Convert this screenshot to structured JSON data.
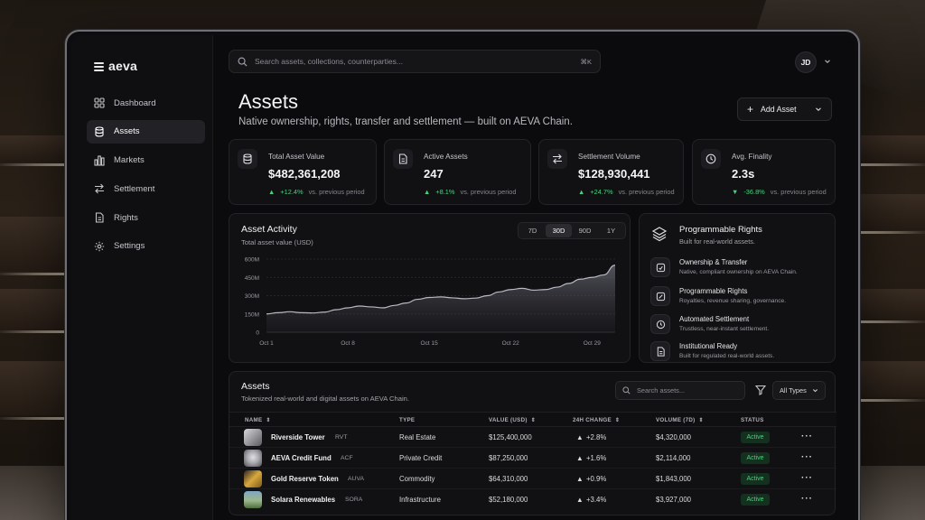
{
  "app": {
    "logo_text": "aeva",
    "nav": [
      {
        "label": "Dashboard",
        "icon": "dashboard-icon"
      },
      {
        "label": "Assets",
        "icon": "database-icon",
        "active": true
      },
      {
        "label": "Markets",
        "icon": "bar-chart-icon"
      },
      {
        "label": "Settlement",
        "icon": "transfer-icon"
      },
      {
        "label": "Rights",
        "icon": "document-icon"
      },
      {
        "label": "Settings",
        "icon": "gear-icon"
      }
    ],
    "search": {
      "placeholder": "Search assets, collections, counterparties...",
      "shortcut": "⌘K"
    },
    "user_initials": "JD"
  },
  "page": {
    "title": "Assets",
    "subtitle": "Native ownership, rights, transfer and settlement — built on AEVA Chain.",
    "add_button": "Add Asset"
  },
  "stats": [
    {
      "label": "Total Asset Value",
      "value": "$482,361,208",
      "change": "+12.4%",
      "direction": "up",
      "note": "vs. previous period",
      "icon": "database-icon"
    },
    {
      "label": "Active Assets",
      "value": "247",
      "change": "+8.1%",
      "direction": "up",
      "note": "vs. previous period",
      "icon": "document-icon"
    },
    {
      "label": "Settlement Volume",
      "value": "$128,930,441",
      "change": "+24.7%",
      "direction": "up",
      "note": "vs. previous period",
      "icon": "transfer-icon"
    },
    {
      "label": "Avg. Finality",
      "value": "2.3s",
      "change": "-36.8%",
      "direction": "down",
      "note": "vs. previous period",
      "icon": "clock-icon"
    }
  ],
  "activity": {
    "title": "Asset Activity",
    "subtitle": "Total asset value (USD)",
    "ranges": [
      "7D",
      "30D",
      "90D",
      "1Y"
    ],
    "selected_range": "30D"
  },
  "chart_data": {
    "type": "area",
    "title": "Asset Activity",
    "subtitle": "Total asset value (USD)",
    "x_ticks": [
      "Oct 1",
      "Oct 8",
      "Oct 15",
      "Oct 22",
      "Oct 29"
    ],
    "y_ticks": [
      "0",
      "150M",
      "300M",
      "450M",
      "600M"
    ],
    "ylim": [
      0,
      600
    ],
    "x": [
      1,
      2,
      3,
      4,
      5,
      6,
      7,
      8,
      9,
      10,
      11,
      12,
      13,
      14,
      15,
      16,
      17,
      18,
      19,
      20,
      21,
      22,
      23,
      24,
      25,
      26,
      27,
      28,
      29,
      30,
      31
    ],
    "values": [
      150,
      160,
      168,
      160,
      158,
      165,
      185,
      200,
      215,
      208,
      200,
      220,
      240,
      270,
      285,
      290,
      282,
      275,
      280,
      300,
      330,
      350,
      360,
      345,
      350,
      370,
      400,
      435,
      450,
      470,
      550
    ],
    "grid": true,
    "color": "#b9b9c2"
  },
  "rights": {
    "title": "Programmable Rights",
    "subtitle": "Built for real-world assets.",
    "items": [
      {
        "title": "Ownership & Transfer",
        "desc": "Native, compliant ownership on AEVA Chain.",
        "icon": "ownership-icon"
      },
      {
        "title": "Programmable Rights",
        "desc": "Royalties, revenue sharing, governance.",
        "icon": "edit-icon"
      },
      {
        "title": "Automated Settlement",
        "desc": "Trustless, near-instant settlement.",
        "icon": "compass-icon"
      },
      {
        "title": "Institutional Ready",
        "desc": "Built for regulated real-world assets.",
        "icon": "document-icon"
      }
    ]
  },
  "assets": {
    "title": "Assets",
    "subtitle": "Tokenized real-world and digital assets on AEVA Chain.",
    "search_placeholder": "Search assets...",
    "type_filter": "All Types",
    "columns": [
      "NAME",
      "TYPE",
      "VALUE (USD)",
      "24H CHANGE",
      "VOLUME (7D)",
      "STATUS"
    ],
    "rows": [
      {
        "name": "Riverside Tower",
        "ticker": "RVT",
        "type": "Real Estate",
        "value": "$125,400,000",
        "change": "+2.8%",
        "volume": "$4,320,000",
        "status": "Active",
        "thumb": "#8a8a8f"
      },
      {
        "name": "AEVA Credit Fund",
        "ticker": "ACF",
        "type": "Private Credit",
        "value": "$87,250,000",
        "change": "+1.6%",
        "volume": "$2,114,000",
        "status": "Active",
        "thumb": "#b4b4ba"
      },
      {
        "name": "Gold Reserve Token",
        "ticker": "AUVA",
        "type": "Commodity",
        "value": "$64,310,000",
        "change": "+0.9%",
        "volume": "$1,843,000",
        "status": "Active",
        "thumb": "#c79a3a"
      },
      {
        "name": "Solara Renewables",
        "ticker": "SORA",
        "type": "Infrastructure",
        "value": "$52,180,000",
        "change": "+3.4%",
        "volume": "$3,927,000",
        "status": "Active",
        "thumb": "#6d8f6a"
      }
    ]
  }
}
